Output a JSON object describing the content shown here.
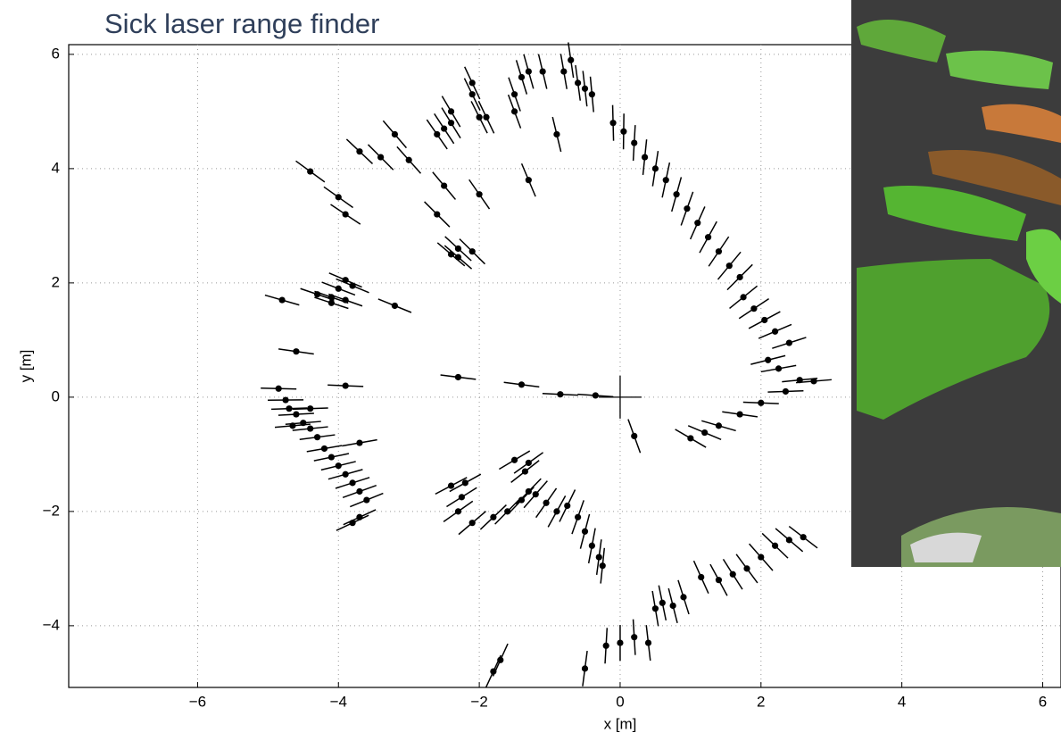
{
  "chart_data": {
    "type": "scatter",
    "title": "Sick laser range finder",
    "xlabel": "x [m]",
    "ylabel": "y [m]",
    "color": "#000000",
    "grid": true,
    "xlim": [
      -7.83,
      6.26
    ],
    "ylim": [
      -5.08,
      6.17
    ],
    "xticks": [
      {
        "value": -6,
        "label": "−6"
      },
      {
        "value": -4,
        "label": "−4"
      },
      {
        "value": -2,
        "label": "−2"
      },
      0,
      2,
      4,
      6
    ],
    "yticks": [
      {
        "value": -4,
        "label": "−4"
      },
      {
        "value": -2,
        "label": "−2"
      },
      0,
      2,
      4,
      6
    ],
    "x": [
      -0.1,
      0.05,
      0.2,
      0.35,
      0.5,
      0.65,
      0.8,
      0.95,
      1.1,
      1.25,
      1.4,
      1.55,
      1.7,
      1.75,
      1.9,
      2.05,
      2.2,
      2.4,
      2.1,
      2.25,
      2.55,
      2.75,
      2.35,
      2.0,
      1.7,
      1.4,
      1.2,
      1.0,
      -1.3,
      -1.1,
      -0.8,
      -0.7,
      -0.6,
      -0.5,
      -0.4,
      -1.4,
      -1.5,
      -1.5,
      -2.1,
      -2.1,
      -2.0,
      -2.4,
      -2.4,
      -2.5,
      -2.6,
      -1.9,
      -0.9,
      -1.3,
      -3.2,
      -3.0,
      -3.4,
      -3.7,
      -4.4,
      -4.0,
      -3.9,
      -2.6,
      -2.5,
      -2.0,
      -2.3,
      -2.4,
      -2.1,
      -2.3,
      -3.9,
      -3.8,
      -4.0,
      -4.1,
      -4.3,
      -4.1,
      -3.9,
      -3.2,
      -4.8,
      -4.6,
      -3.9,
      -2.3,
      -1.4,
      -0.85,
      -0.35,
      0.2,
      -4.85,
      -4.75,
      -4.7,
      -4.6,
      -4.5,
      -4.4,
      -4.3,
      -4.2,
      -4.1,
      -4.0,
      -3.9,
      -3.8,
      -3.7,
      -3.6,
      -3.7,
      -3.8,
      -4.65,
      -4.4,
      -3.7,
      -2.4,
      -2.2,
      -2.25,
      -2.3,
      -2.1,
      -1.8,
      -1.6,
      -1.4,
      -1.3,
      -1.2,
      -1.05,
      -0.9,
      -0.75,
      -0.6,
      -0.5,
      -0.4,
      -0.3,
      -0.25,
      -1.5,
      -1.3,
      -1.35,
      0.5,
      0.6,
      0.75,
      0.9,
      1.15,
      1.4,
      1.6,
      1.8,
      2.0,
      2.2,
      2.4,
      2.6,
      -0.2,
      0.0,
      0.2,
      0.4,
      -0.5,
      -1.8,
      -1.7
    ],
    "y": [
      4.8,
      4.65,
      4.45,
      4.2,
      4.0,
      3.8,
      3.55,
      3.3,
      3.05,
      2.8,
      2.55,
      2.3,
      2.1,
      1.75,
      1.55,
      1.35,
      1.15,
      0.95,
      0.65,
      0.5,
      0.3,
      0.28,
      0.1,
      -0.1,
      -0.3,
      -0.5,
      -0.62,
      -0.72,
      5.7,
      5.7,
      5.7,
      5.9,
      5.5,
      5.4,
      5.3,
      5.6,
      5.3,
      5.0,
      5.5,
      5.3,
      4.9,
      5.0,
      4.8,
      4.7,
      4.6,
      4.9,
      4.6,
      3.8,
      4.6,
      4.15,
      4.2,
      4.3,
      3.95,
      3.5,
      3.2,
      3.2,
      3.7,
      3.55,
      2.6,
      2.5,
      2.55,
      2.45,
      2.05,
      1.95,
      1.9,
      1.75,
      1.8,
      1.65,
      1.7,
      1.6,
      1.7,
      0.8,
      0.2,
      0.35,
      0.22,
      0.05,
      0.03,
      -0.68,
      0.15,
      -0.05,
      -0.2,
      -0.3,
      -0.45,
      -0.55,
      -0.7,
      -0.9,
      -1.05,
      -1.2,
      -1.35,
      -1.5,
      -1.65,
      -1.8,
      -2.1,
      -2.2,
      -0.5,
      -0.2,
      -0.8,
      -1.55,
      -1.5,
      -1.75,
      -2.0,
      -2.2,
      -2.1,
      -2.0,
      -1.8,
      -1.65,
      -1.7,
      -1.85,
      -2.0,
      -1.9,
      -2.1,
      -2.35,
      -2.6,
      -2.8,
      -2.95,
      -1.1,
      -1.15,
      -1.3,
      -3.7,
      -3.6,
      -3.65,
      -3.5,
      -3.15,
      -3.2,
      -3.1,
      -3.0,
      -2.8,
      -2.6,
      -2.5,
      -2.45,
      -4.35,
      -4.3,
      -4.2,
      -4.3,
      -4.75,
      -4.8,
      -4.6
    ]
  }
}
